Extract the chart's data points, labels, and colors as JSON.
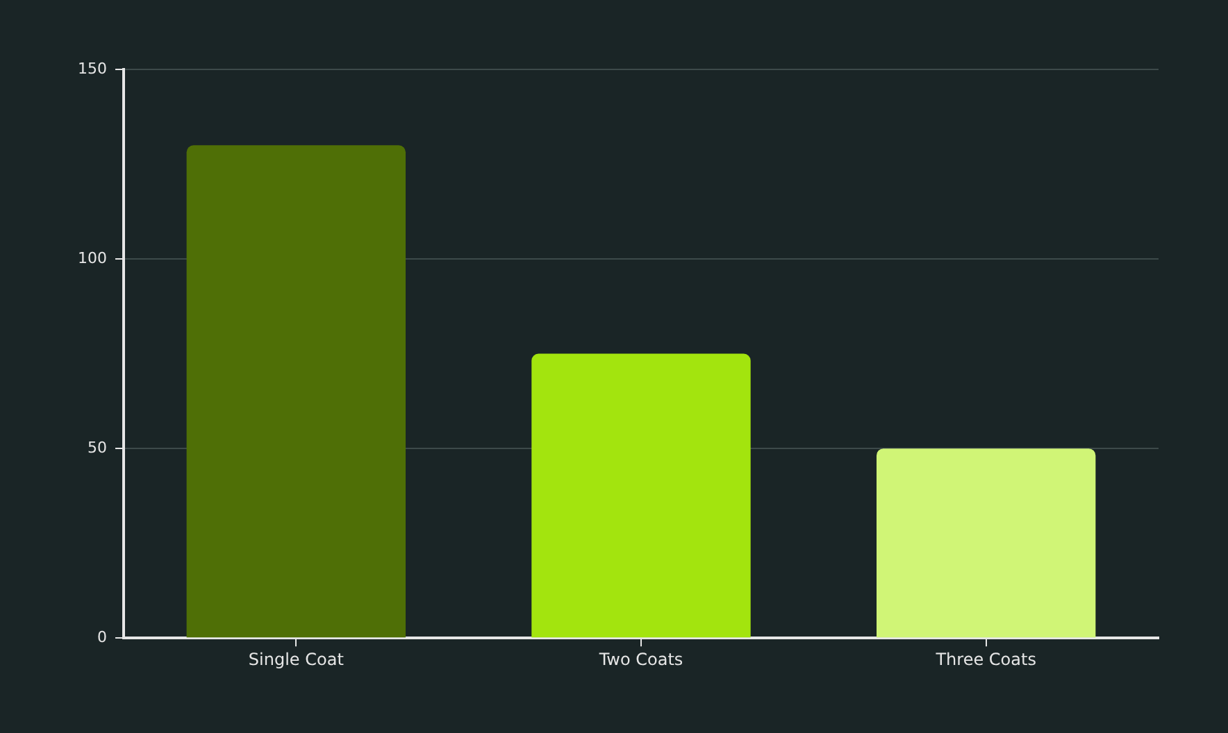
{
  "chart_data": {
    "type": "bar",
    "categories": [
      "Single Coat",
      "Two Coats",
      "Three Coats"
    ],
    "values": [
      130,
      75,
      50
    ],
    "colors": [
      "#4f6f06",
      "#a3e40e",
      "#d0f576"
    ],
    "ylim": [
      0,
      150
    ],
    "yticks": [
      0,
      50,
      100,
      150
    ],
    "grid": "y"
  }
}
